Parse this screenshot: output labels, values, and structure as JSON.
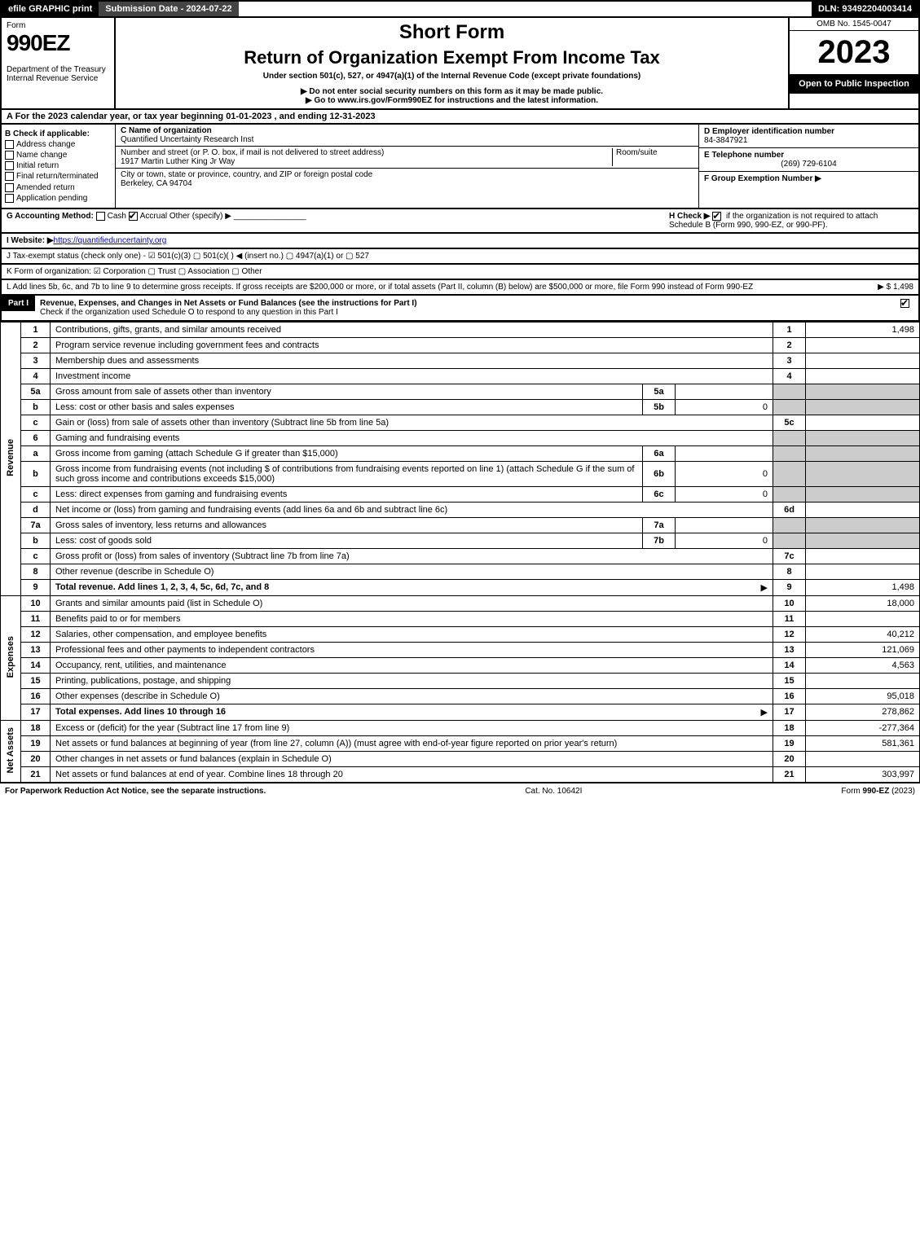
{
  "topbar": {
    "efile": "efile GRAPHIC print",
    "subdate_label": "Submission Date - 2024-07-22",
    "dln": "DLN: 93492204003414"
  },
  "header": {
    "form_label": "Form",
    "form_number": "990EZ",
    "dept": "Department of the Treasury",
    "irs": "Internal Revenue Service",
    "short_form": "Short Form",
    "main_title": "Return of Organization Exempt From Income Tax",
    "sub1": "Under section 501(c), 527, or 4947(a)(1) of the Internal Revenue Code (except private foundations)",
    "sub2": "▶ Do not enter social security numbers on this form as it may be made public.",
    "sub3": "▶ Go to www.irs.gov/Form990EZ for instructions and the latest information.",
    "omb": "OMB No. 1545-0047",
    "year": "2023",
    "inspection": "Open to Public Inspection"
  },
  "section_a": "A  For the 2023 calendar year, or tax year beginning 01-01-2023 , and ending 12-31-2023",
  "b_check": {
    "title": "B  Check if applicable:",
    "items": [
      "Address change",
      "Name change",
      "Initial return",
      "Final return/terminated",
      "Amended return",
      "Application pending"
    ]
  },
  "c_block": {
    "name_label": "C Name of organization",
    "name": "Quantified Uncertainty Research Inst",
    "street_label": "Number and street (or P. O. box, if mail is not delivered to street address)",
    "room_label": "Room/suite",
    "street": "1917 Martin Luther King Jr Way",
    "city_label": "City or town, state or province, country, and ZIP or foreign postal code",
    "city": "Berkeley, CA  94704"
  },
  "d_block": {
    "ein_label": "D Employer identification number",
    "ein": "84-3847921",
    "tel_label": "E Telephone number",
    "tel": "(269) 729-6104",
    "group_label": "F Group Exemption Number  ▶"
  },
  "g_row": {
    "label": "G Accounting Method:",
    "cash": "Cash",
    "accrual": "Accrual",
    "other": "Other (specify) ▶",
    "h_label": "H  Check ▶",
    "h_text": "if the organization is not required to attach Schedule B (Form 990, 990-EZ, or 990-PF)."
  },
  "i_row": {
    "label": "I Website: ▶",
    "url": "https://quantifieduncertainty.org"
  },
  "j_row": "J Tax-exempt status (check only one) - ☑ 501(c)(3)  ▢ 501(c)(  ) ◀ (insert no.)  ▢ 4947(a)(1) or  ▢ 527",
  "k_row": "K Form of organization:  ☑ Corporation   ▢ Trust   ▢ Association   ▢ Other",
  "l_row": {
    "text": "L Add lines 5b, 6c, and 7b to line 9 to determine gross receipts. If gross receipts are $200,000 or more, or if total assets (Part II, column (B) below) are $500,000 or more, file Form 990 instead of Form 990-EZ",
    "amount": "▶ $ 1,498"
  },
  "part1": {
    "label": "Part I",
    "title": "Revenue, Expenses, and Changes in Net Assets or Fund Balances (see the instructions for Part I)",
    "check_text": "Check if the organization used Schedule O to respond to any question in this Part I"
  },
  "groups": {
    "revenue": "Revenue",
    "expenses": "Expenses",
    "netassets": "Net Assets"
  },
  "lines": [
    {
      "g": "revenue",
      "n": "1",
      "d": "Contributions, gifts, grants, and similar amounts received",
      "nc": "1",
      "amt": "1,498"
    },
    {
      "g": "revenue",
      "n": "2",
      "d": "Program service revenue including government fees and contracts",
      "nc": "2",
      "amt": ""
    },
    {
      "g": "revenue",
      "n": "3",
      "d": "Membership dues and assessments",
      "nc": "3",
      "amt": ""
    },
    {
      "g": "revenue",
      "n": "4",
      "d": "Investment income",
      "nc": "4",
      "amt": ""
    },
    {
      "g": "revenue",
      "n": "5a",
      "d": "Gross amount from sale of assets other than inventory",
      "sub": "5a",
      "subval": "",
      "grey": true
    },
    {
      "g": "revenue",
      "n": "b",
      "d": "Less: cost or other basis and sales expenses",
      "sub": "5b",
      "subval": "0",
      "grey": true
    },
    {
      "g": "revenue",
      "n": "c",
      "d": "Gain or (loss) from sale of assets other than inventory (Subtract line 5b from line 5a)",
      "nc": "5c",
      "amt": ""
    },
    {
      "g": "revenue",
      "n": "6",
      "d": "Gaming and fundraising events",
      "grey": true,
      "nosub": true
    },
    {
      "g": "revenue",
      "n": "a",
      "d": "Gross income from gaming (attach Schedule G if greater than $15,000)",
      "sub": "6a",
      "subval": "",
      "grey": true
    },
    {
      "g": "revenue",
      "n": "b",
      "d": "Gross income from fundraising events (not including $                   of contributions from fundraising events reported on line 1) (attach Schedule G if the sum of such gross income and contributions exceeds $15,000)",
      "sub": "6b",
      "subval": "0",
      "grey": true
    },
    {
      "g": "revenue",
      "n": "c",
      "d": "Less: direct expenses from gaming and fundraising events",
      "sub": "6c",
      "subval": "0",
      "grey": true
    },
    {
      "g": "revenue",
      "n": "d",
      "d": "Net income or (loss) from gaming and fundraising events (add lines 6a and 6b and subtract line 6c)",
      "nc": "6d",
      "amt": ""
    },
    {
      "g": "revenue",
      "n": "7a",
      "d": "Gross sales of inventory, less returns and allowances",
      "sub": "7a",
      "subval": "",
      "grey": true
    },
    {
      "g": "revenue",
      "n": "b",
      "d": "Less: cost of goods sold",
      "sub": "7b",
      "subval": "0",
      "grey": true
    },
    {
      "g": "revenue",
      "n": "c",
      "d": "Gross profit or (loss) from sales of inventory (Subtract line 7b from line 7a)",
      "nc": "7c",
      "amt": ""
    },
    {
      "g": "revenue",
      "n": "8",
      "d": "Other revenue (describe in Schedule O)",
      "nc": "8",
      "amt": ""
    },
    {
      "g": "revenue",
      "n": "9",
      "d": "Total revenue. Add lines 1, 2, 3, 4, 5c, 6d, 7c, and 8",
      "nc": "9",
      "amt": "1,498",
      "bold": true,
      "arrow": true
    },
    {
      "g": "expenses",
      "n": "10",
      "d": "Grants and similar amounts paid (list in Schedule O)",
      "nc": "10",
      "amt": "18,000"
    },
    {
      "g": "expenses",
      "n": "11",
      "d": "Benefits paid to or for members",
      "nc": "11",
      "amt": ""
    },
    {
      "g": "expenses",
      "n": "12",
      "d": "Salaries, other compensation, and employee benefits",
      "nc": "12",
      "amt": "40,212"
    },
    {
      "g": "expenses",
      "n": "13",
      "d": "Professional fees and other payments to independent contractors",
      "nc": "13",
      "amt": "121,069"
    },
    {
      "g": "expenses",
      "n": "14",
      "d": "Occupancy, rent, utilities, and maintenance",
      "nc": "14",
      "amt": "4,563"
    },
    {
      "g": "expenses",
      "n": "15",
      "d": "Printing, publications, postage, and shipping",
      "nc": "15",
      "amt": ""
    },
    {
      "g": "expenses",
      "n": "16",
      "d": "Other expenses (describe in Schedule O)",
      "nc": "16",
      "amt": "95,018"
    },
    {
      "g": "expenses",
      "n": "17",
      "d": "Total expenses. Add lines 10 through 16",
      "nc": "17",
      "amt": "278,862",
      "bold": true,
      "arrow": true
    },
    {
      "g": "netassets",
      "n": "18",
      "d": "Excess or (deficit) for the year (Subtract line 17 from line 9)",
      "nc": "18",
      "amt": "-277,364"
    },
    {
      "g": "netassets",
      "n": "19",
      "d": "Net assets or fund balances at beginning of year (from line 27, column (A)) (must agree with end-of-year figure reported on prior year's return)",
      "nc": "19",
      "amt": "581,361"
    },
    {
      "g": "netassets",
      "n": "20",
      "d": "Other changes in net assets or fund balances (explain in Schedule O)",
      "nc": "20",
      "amt": ""
    },
    {
      "g": "netassets",
      "n": "21",
      "d": "Net assets or fund balances at end of year. Combine lines 18 through 20",
      "nc": "21",
      "amt": "303,997"
    }
  ],
  "footer": {
    "left": "For Paperwork Reduction Act Notice, see the separate instructions.",
    "mid": "Cat. No. 10642I",
    "right": "Form 990-EZ (2023)"
  }
}
